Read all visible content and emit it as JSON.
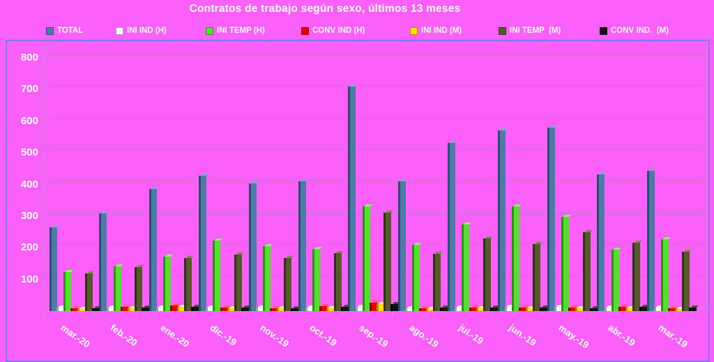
{
  "title": "Contratos de trabajo según sexo, últimos 13 meses",
  "colors": {
    "background": "#fa5ffa",
    "frame_border": "#7e7af0",
    "gridline": "#bd7fc4",
    "text": "#ffffff"
  },
  "chart_data": {
    "type": "bar",
    "style": "3d-column",
    "title": "Contratos de trabajo según sexo, últimos 13 meses",
    "xlabel": "",
    "ylabel": "",
    "ylim": [
      0,
      800
    ],
    "ytick_step": 100,
    "yticks": [
      100,
      200,
      300,
      400,
      500,
      600,
      700,
      800
    ],
    "grid": true,
    "legend_position": "top",
    "categories": [
      "mar.-20",
      "feb.-20",
      "ene.-20",
      "dic.-19",
      "nov.-19",
      "oct.-19",
      "sep.-19",
      "ago.-19",
      "jul.-19",
      "jun.-19",
      "may.-19",
      "abr.-19",
      "mar.-19"
    ],
    "series": [
      {
        "name": "TOTAL",
        "color": "#4d7aa6",
        "color_dark": "#2c4e6e",
        "color_light": "#7fa8c9",
        "values": [
          265,
          308,
          386,
          428,
          403,
          411,
          710,
          409,
          532,
          570,
          580,
          432,
          444
        ]
      },
      {
        "name": "INI IND (H)",
        "color": "#ffffff",
        "color_dark": "#9e9e9e",
        "color_light": "#ffffff",
        "values": [
          10,
          10,
          10,
          12,
          10,
          10,
          14,
          8,
          10,
          14,
          14,
          10,
          12
        ]
      },
      {
        "name": "INI TEMP (H)",
        "color": "#53e02c",
        "color_dark": "#2f8f17",
        "color_light": "#90f170",
        "values": [
          123,
          140,
          171,
          223,
          205,
          197,
          331,
          210,
          273,
          330,
          297,
          193,
          227
        ]
      },
      {
        "name": "CONV IND (H)",
        "color": "#e80000",
        "color_dark": "#8c0000",
        "color_light": "#ff5a5a",
        "values": [
          8,
          13,
          17,
          11,
          8,
          15,
          26,
          8,
          10,
          11,
          10,
          13,
          9
        ]
      },
      {
        "name": "INI IND (M)",
        "color": "#ffdf00",
        "color_dark": "#a89200",
        "color_light": "#fff08a",
        "values": [
          6,
          8,
          14,
          8,
          8,
          9,
          21,
          6,
          8,
          9,
          8,
          8,
          7
        ]
      },
      {
        "name": "INI TEMP  (M)",
        "color": "#565a2a",
        "color_dark": "#303218",
        "color_light": "#83864b",
        "values": [
          120,
          139,
          167,
          178,
          168,
          182,
          310,
          181,
          230,
          212,
          250,
          216,
          187
        ]
      },
      {
        "name": "CONV IND.  (M)",
        "color": "#121212",
        "color_dark": "#000000",
        "color_light": "#474747",
        "values": [
          9,
          11,
          13,
          11,
          9,
          13,
          21,
          10,
          12,
          12,
          9,
          13,
          11
        ]
      }
    ]
  },
  "legend_x_positions": [
    66,
    166,
    295,
    432,
    588,
    715,
    860
  ]
}
